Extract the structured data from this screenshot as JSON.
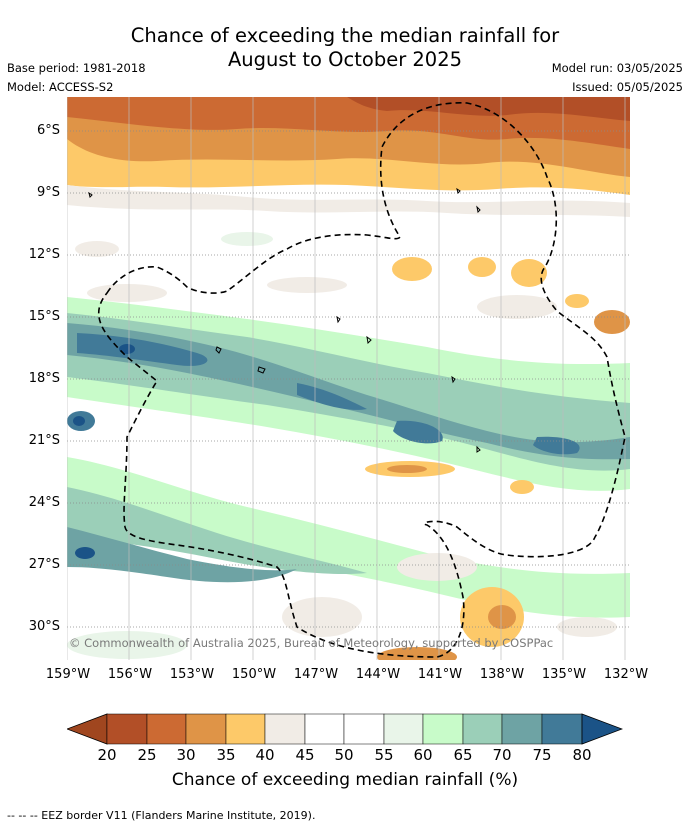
{
  "title_line1": "Chance of exceeding the median rainfall for",
  "title_line2": "August to October 2025",
  "meta": {
    "base_period": "Base period: 1981-2018",
    "model": "Model: ACCESS-S2",
    "model_run": "Model run: 03/05/2025",
    "issued": "Issued: 05/05/2025"
  },
  "map": {
    "lat_labels": [
      "6°S",
      "9°S",
      "12°S",
      "15°S",
      "18°S",
      "21°S",
      "24°S",
      "27°S",
      "30°S"
    ],
    "lon_labels": [
      "159°W",
      "156°W",
      "153°W",
      "150°W",
      "147°W",
      "144°W",
      "141°W",
      "138°W",
      "135°W",
      "132°W"
    ],
    "copyright": "© Commonwealth of Australia 2025, Bureau of Meteorology, supported by COSPPac"
  },
  "colorbar": {
    "title": "Chance of exceeding median rainfall (%)",
    "ticks": [
      "20",
      "25",
      "30",
      "35",
      "40",
      "45",
      "50",
      "55",
      "60",
      "65",
      "70",
      "75",
      "80"
    ],
    "colors": [
      "#a0461f",
      "#b24f27",
      "#cc6a33",
      "#df9447",
      "#fdc969",
      "#f1ece6",
      "#ffffff",
      "#ffffff",
      "#e9f5e9",
      "#c8fbc9",
      "#9bcfb8",
      "#6ea3a4",
      "#417a98",
      "#1b5387"
    ]
  },
  "legend_note": "--  --  -- EEZ border V11 (Flanders Marine Institute, 2019)."
}
